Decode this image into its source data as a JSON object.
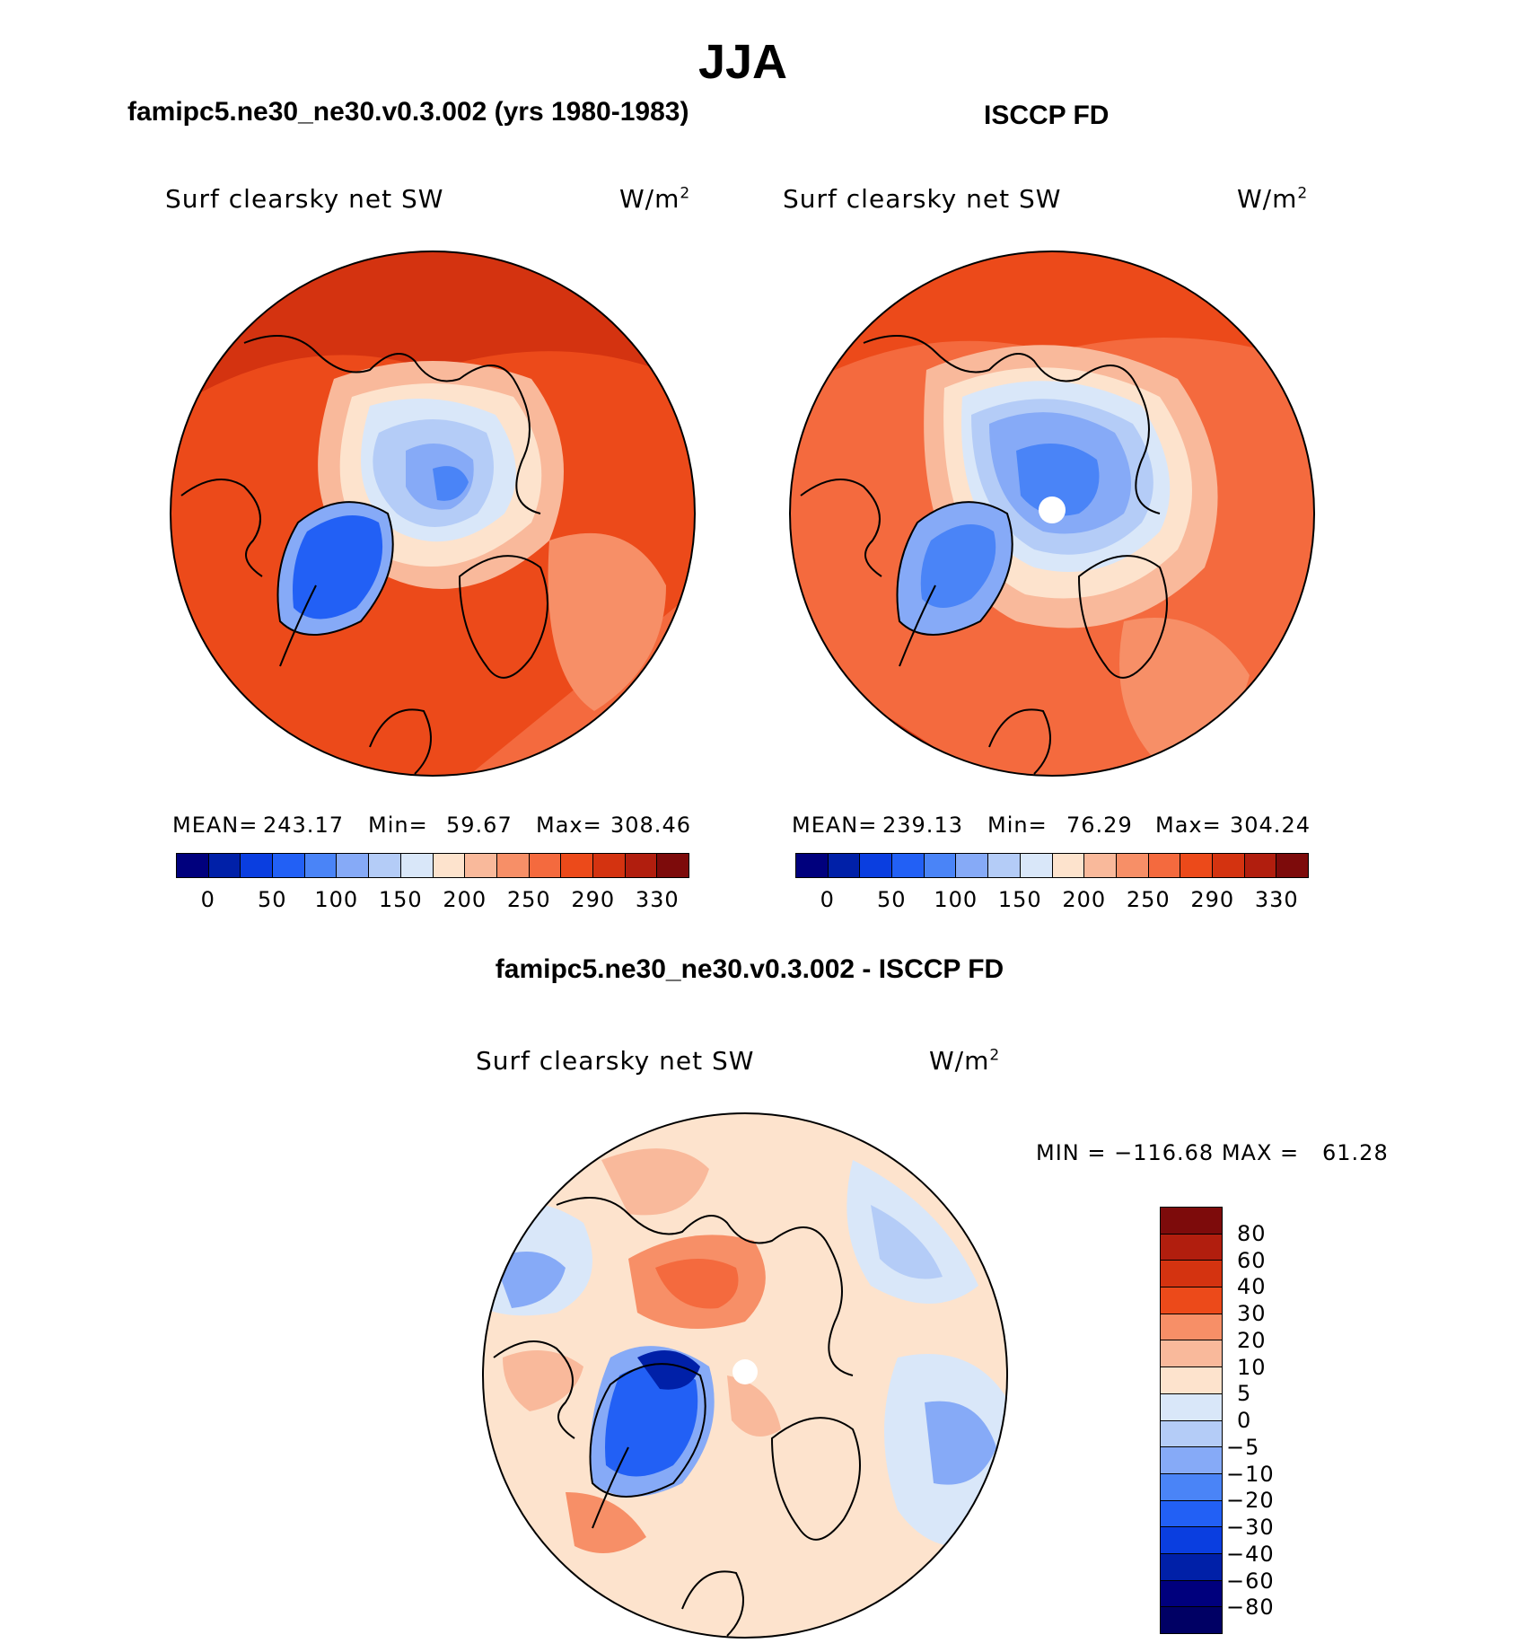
{
  "figure": {
    "title": "JJA",
    "left_title": "famipc5.ne30_ne30.v0.3.002 (yrs 1980-1983)",
    "right_title": "ISCCP FD",
    "diff_title": "famipc5.ne30_ne30.v0.3.002 - ISCCP FD"
  },
  "panels": {
    "left": {
      "field": "Surf clearsky net SW",
      "units": "W/m",
      "units_sup": "2",
      "mean_label": "MEAN=",
      "mean_value": "243.17",
      "min_label": "Min=",
      "min_value": "59.67",
      "max_label": "Max=",
      "max_value": "308.46"
    },
    "right": {
      "field": "Surf clearsky net SW",
      "units": "W/m",
      "units_sup": "2",
      "mean_label": "MEAN=",
      "mean_value": "239.13",
      "min_label": "Min=",
      "min_value": "76.29",
      "max_label": "Max=",
      "max_value": "304.24"
    },
    "diff": {
      "field": "Surf clearsky net SW",
      "units": "W/m",
      "units_sup": "2",
      "minmax": "MIN = −116.68 MAX =   61.28"
    }
  },
  "chart_data": [
    {
      "type": "heatmap",
      "projection": "north polar stereographic",
      "panel": "left",
      "title": "famipc5.ne30_ne30.v0.3.002 (yrs 1980-1983)",
      "field": "Surf clearsky net SW",
      "units": "W/m2",
      "mean": 243.17,
      "min": 59.67,
      "max": 308.46,
      "colorbar_ticks": [
        "0",
        "50",
        "100",
        "150",
        "200",
        "250",
        "290",
        "330"
      ],
      "colorbar_colors": [
        "#00007d",
        "#0020a8",
        "#0a3ee0",
        "#2260f5",
        "#4a84f7",
        "#86aaf7",
        "#b4ccf7",
        "#d9e7f9",
        "#fde3cd",
        "#f9b99b",
        "#f78f67",
        "#f46a3e",
        "#ec4a1a",
        "#d43310",
        "#b11e0e",
        "#7d0b0b"
      ]
    },
    {
      "type": "heatmap",
      "projection": "north polar stereographic",
      "panel": "right",
      "title": "ISCCP FD",
      "field": "Surf clearsky net SW",
      "units": "W/m2",
      "mean": 239.13,
      "min": 76.29,
      "max": 304.24,
      "colorbar_ticks": [
        "0",
        "50",
        "100",
        "150",
        "200",
        "250",
        "290",
        "330"
      ],
      "colorbar_colors": [
        "#00007d",
        "#0020a8",
        "#0a3ee0",
        "#2260f5",
        "#4a84f7",
        "#86aaf7",
        "#b4ccf7",
        "#d9e7f9",
        "#fde3cd",
        "#f9b99b",
        "#f78f67",
        "#f46a3e",
        "#ec4a1a",
        "#d43310",
        "#b11e0e",
        "#7d0b0b"
      ]
    },
    {
      "type": "heatmap",
      "projection": "north polar stereographic",
      "panel": "difference",
      "title": "famipc5.ne30_ne30.v0.3.002 - ISCCP FD",
      "field": "Surf clearsky net SW",
      "units": "W/m2",
      "min": -116.68,
      "max": 61.28,
      "colorbar_ticks": [
        "80",
        "60",
        "40",
        "30",
        "20",
        "10",
        "5",
        "0",
        "−5",
        "−10",
        "−20",
        "−30",
        "−40",
        "−60",
        "−80"
      ],
      "colorbar_colors": [
        "#7d0b0b",
        "#b11e0e",
        "#d43310",
        "#ec4a1a",
        "#f78f67",
        "#f9b99b",
        "#fde3cd",
        "#d9e7f9",
        "#b4ccf7",
        "#86aaf7",
        "#4a84f7",
        "#2260f5",
        "#0a3ee0",
        "#0020a8",
        "#00007d",
        "#000064"
      ]
    }
  ]
}
